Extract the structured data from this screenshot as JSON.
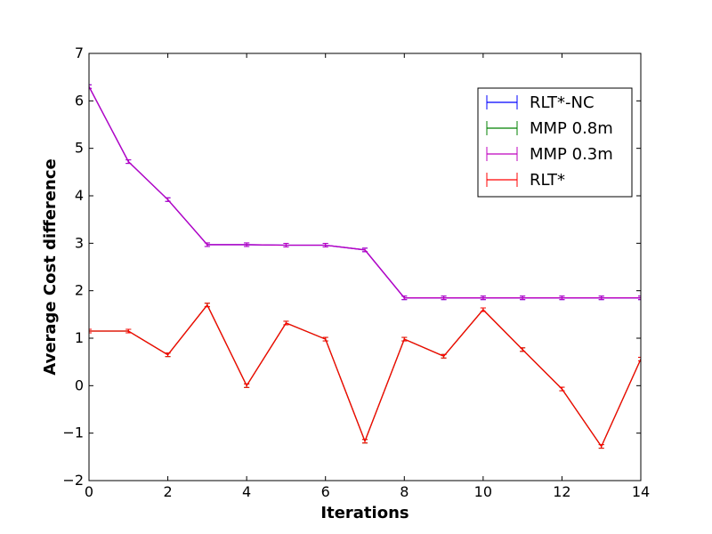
{
  "chart_data": {
    "type": "line",
    "xlabel": "Iterations",
    "ylabel": "Average Cost difference",
    "xlim": [
      0,
      14
    ],
    "ylim": [
      -2,
      7
    ],
    "x_ticks": [
      0,
      2,
      4,
      6,
      8,
      10,
      12,
      14
    ],
    "y_ticks": [
      -2,
      -1,
      0,
      1,
      2,
      3,
      4,
      5,
      6,
      7
    ],
    "x_tick_labels": [
      "0",
      "2",
      "4",
      "6",
      "8",
      "10",
      "12",
      "14"
    ],
    "y_tick_labels": [
      "−2",
      "−1",
      "0",
      "1",
      "2",
      "3",
      "4",
      "5",
      "6",
      "7"
    ],
    "grid": false,
    "legend_position": "upper-right",
    "x": [
      0,
      1,
      2,
      3,
      4,
      5,
      6,
      7,
      8,
      9,
      10,
      11,
      12,
      13,
      14
    ],
    "series": [
      {
        "name": "RLT*-NC",
        "color": "#0000ff",
        "values": [
          6.3,
          4.72,
          3.92,
          2.97,
          2.97,
          2.96,
          2.96,
          2.86,
          1.85,
          1.85,
          1.85,
          1.85,
          1.85,
          1.85,
          1.85
        ]
      },
      {
        "name": "MMP 0.8m",
        "color": "#008000",
        "values": [
          1.15,
          1.15,
          0.65,
          1.7,
          0.0,
          1.32,
          0.98,
          -1.17,
          0.98,
          0.62,
          1.6,
          0.76,
          -0.07,
          -1.28,
          0.56
        ]
      },
      {
        "name": "MMP 0.3m",
        "color": "#bf00bf",
        "values": [
          6.3,
          4.72,
          3.92,
          2.97,
          2.97,
          2.96,
          2.96,
          2.86,
          1.85,
          1.85,
          1.85,
          1.85,
          1.85,
          1.85,
          1.85
        ]
      },
      {
        "name": "RLT*",
        "color": "#ff0000",
        "values": [
          1.15,
          1.15,
          0.65,
          1.7,
          0.0,
          1.32,
          0.98,
          -1.17,
          0.98,
          0.62,
          1.6,
          0.76,
          -0.07,
          -1.28,
          0.56
        ]
      }
    ]
  }
}
